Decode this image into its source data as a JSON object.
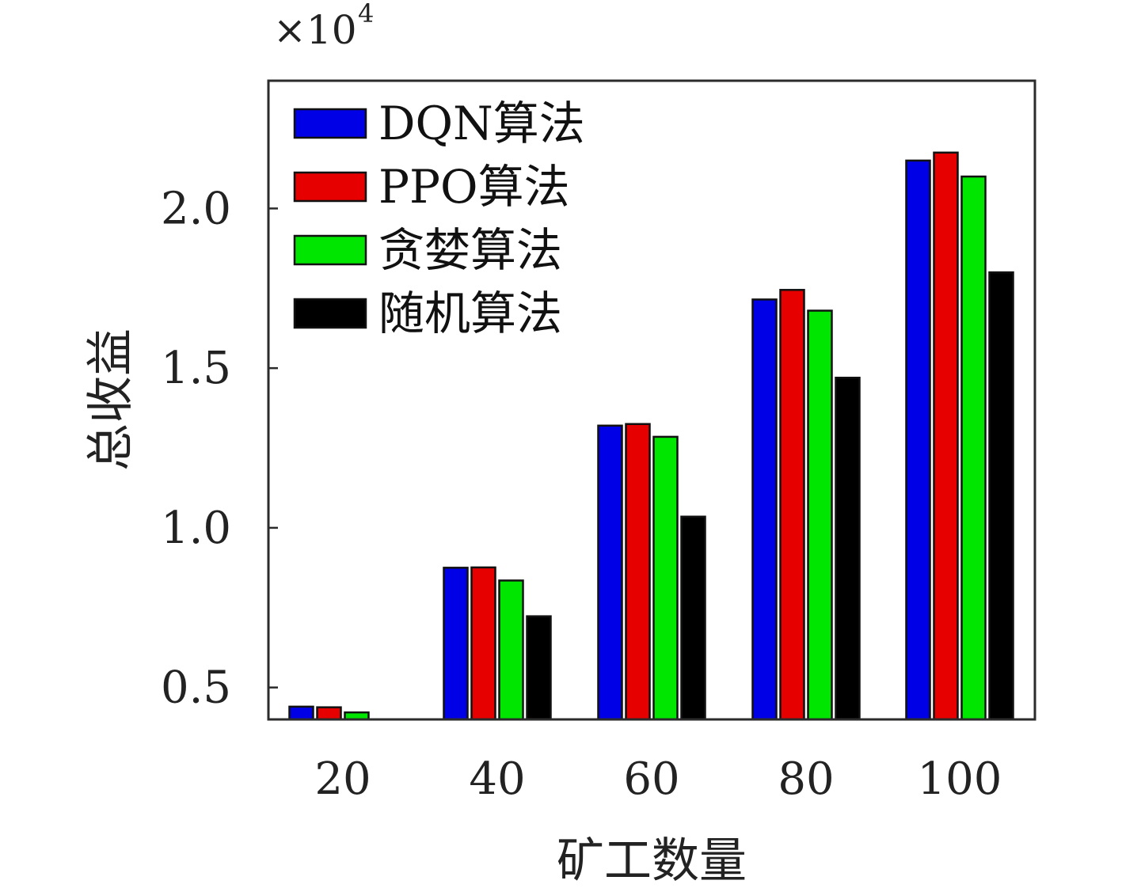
{
  "chart_data": {
    "type": "bar",
    "categories": [
      "20",
      "40",
      "60",
      "80",
      "100"
    ],
    "series": [
      {
        "name": "DQN算法",
        "color": "#0000e6",
        "values": [
          4400,
          8750,
          13200,
          17150,
          21500
        ]
      },
      {
        "name": "PPO算法",
        "color": "#e60000",
        "values": [
          4380,
          8760,
          13250,
          17450,
          21750
        ]
      },
      {
        "name": "贪婪算法",
        "color": "#00e600",
        "values": [
          4220,
          8350,
          12850,
          16800,
          21000
        ]
      },
      {
        "name": "随机算法",
        "color": "#000000",
        "values": [
          3980,
          7230,
          10350,
          14700,
          18000
        ]
      }
    ],
    "xlabel": "矿工数量",
    "ylabel": "总收益",
    "ylim": [
      4000,
      24000
    ],
    "yticks": [
      5000,
      10000,
      15000,
      20000
    ],
    "ytick_labels": [
      "0.5",
      "1.0",
      "1.5",
      "2.0"
    ],
    "y_multiplier": {
      "base": "×10",
      "exponent": "4"
    },
    "legend_position": "top-left",
    "grid": false
  }
}
